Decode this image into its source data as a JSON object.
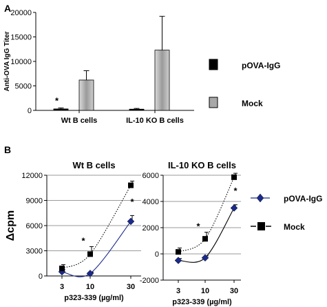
{
  "panel_a": {
    "letter": "A",
    "legend": [
      {
        "label": "pOVA-IgG",
        "color": "#000000"
      },
      {
        "label": "Mock",
        "color": "#a8a8a8"
      }
    ],
    "significance": "*"
  },
  "panel_b": {
    "letter": "B",
    "legend": [
      {
        "label": "pOVA-IgG",
        "color": "#1a2a8c"
      },
      {
        "label": "Mock",
        "color": "#000000"
      }
    ]
  },
  "chart_data": [
    {
      "type": "bar",
      "ylabel": "Anti-OVA IgG Titer",
      "xlabel": "",
      "ylim": [
        0,
        20000
      ],
      "yticks": [
        0,
        5000,
        10000,
        15000,
        20000
      ],
      "categories": [
        "Wt B cells",
        "IL-10 KO B cells"
      ],
      "series": [
        {
          "name": "pOVA-IgG",
          "values": [
            300,
            250
          ],
          "errors": [
            200,
            150
          ],
          "color": "#000000"
        },
        {
          "name": "Mock",
          "values": [
            6200,
            12300
          ],
          "errors": [
            1900,
            6900
          ],
          "color": "#a8a8a8"
        }
      ],
      "annotations": [
        {
          "category": 0,
          "series": 0,
          "text": "*"
        }
      ]
    },
    {
      "type": "line",
      "title": "Wt B cells",
      "ylabel": "Δcpm",
      "xlabel": "p323-339 (µg/ml)",
      "x": [
        "3",
        "10",
        "30"
      ],
      "ylim": [
        0,
        12000
      ],
      "yticks": [
        0,
        3000,
        6000,
        9000,
        12000
      ],
      "grid": true,
      "series": [
        {
          "name": "pOVA-IgG",
          "values": [
            500,
            300,
            6500
          ],
          "errors": [
            250,
            150,
            700
          ],
          "style": "solid",
          "marker": "diamond",
          "color": "#1a2a8c"
        },
        {
          "name": "Mock",
          "values": [
            900,
            2600,
            10800
          ],
          "errors": [
            450,
            900,
            500
          ],
          "style": "dotted",
          "marker": "square",
          "color": "#000000"
        }
      ],
      "annotations": [
        {
          "x": "10",
          "text": "*"
        },
        {
          "x": "30",
          "text": "*"
        }
      ]
    },
    {
      "type": "line",
      "title": "IL-10 KO B cells",
      "ylabel": "",
      "xlabel": "p323-339 (µg/ml)",
      "x": [
        "3",
        "10",
        "30"
      ],
      "ylim": [
        -2000,
        6000
      ],
      "yticks": [
        -2000,
        0,
        2000,
        4000,
        6000
      ],
      "grid": true,
      "series": [
        {
          "name": "pOVA-IgG",
          "values": [
            -500,
            -300,
            3500
          ],
          "errors": [
            150,
            150,
            250
          ],
          "style": "solid",
          "marker": "diamond",
          "color": "#000000"
        },
        {
          "name": "Mock",
          "values": [
            150,
            1150,
            5850
          ],
          "errors": [
            300,
            500,
            300
          ],
          "style": "dotted",
          "marker": "square",
          "color": "#000000"
        }
      ],
      "annotations": [
        {
          "x": "10",
          "text": "*"
        },
        {
          "x": "30",
          "text": "*"
        }
      ]
    }
  ]
}
